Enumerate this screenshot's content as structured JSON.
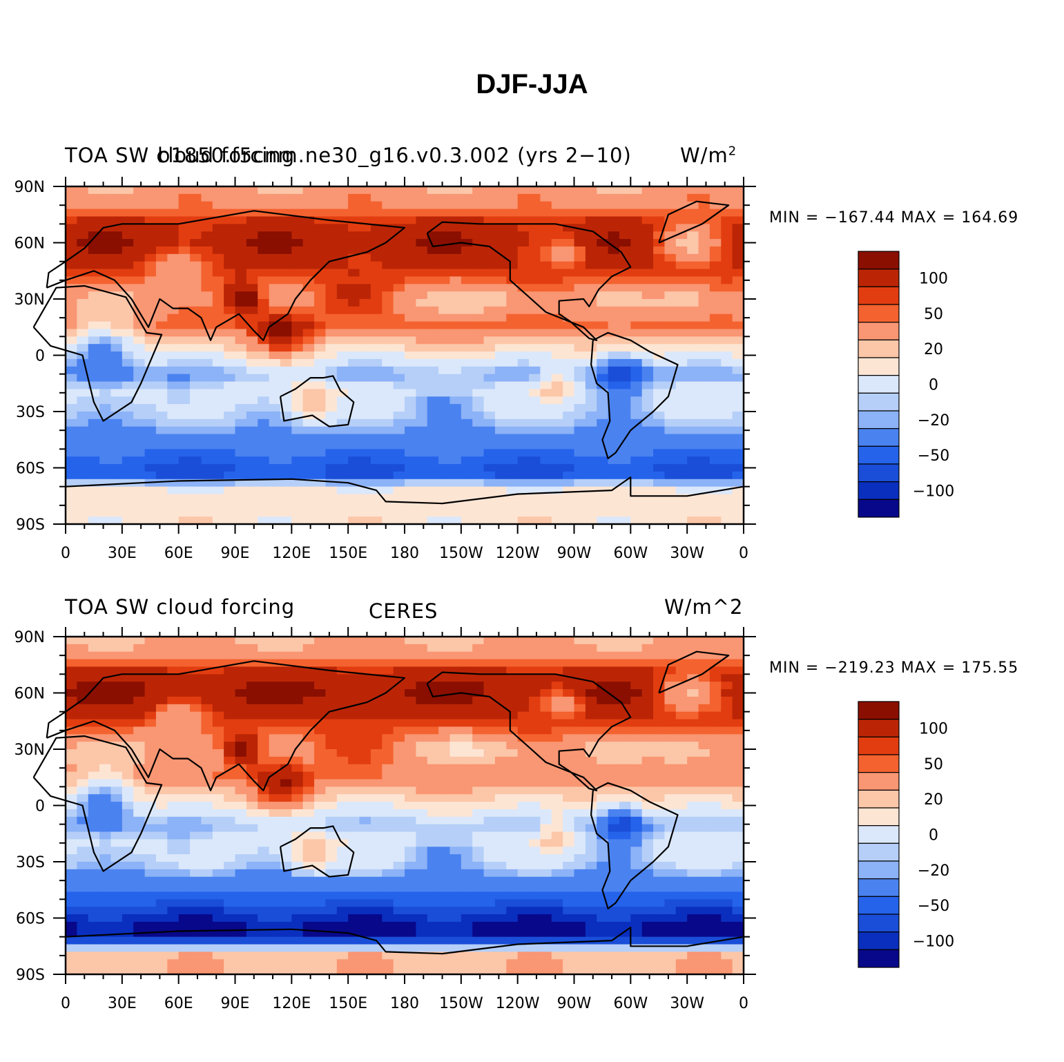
{
  "title": "DJF-JJA",
  "colors": [
    "#08088a",
    "#0a2fbf",
    "#1a4ed8",
    "#2563eb",
    "#4a82f0",
    "#8cb2f7",
    "#b5cff8",
    "#dbe8fb",
    "#fde5d4",
    "#fcc6a8",
    "#f99673",
    "#f4622f",
    "#e23d10",
    "#bb2506",
    "#8a0f00"
  ],
  "colorbar_labels": [
    "100",
    "50",
    "20",
    "0",
    "−20",
    "−50",
    "−100"
  ],
  "lon_labels": [
    "0",
    "30E",
    "60E",
    "90E",
    "120E",
    "150E",
    "180",
    "150W",
    "120W",
    "90W",
    "60W",
    "30W",
    "0"
  ],
  "lat_labels": [
    "90N",
    "60N",
    "30N",
    "0",
    "30S",
    "60S",
    "90S"
  ],
  "panels": [
    {
      "left_label": "TOA SW cloud forcing",
      "center_label": "b1850.f5cnm.ne30_g16.v0.3.002 (yrs 2−10)",
      "units_base": "W/m",
      "units_sup": "2",
      "units_plain": "",
      "stats": "MIN = −167.44  MAX = 164.69"
    },
    {
      "left_label": "TOA SW cloud forcing",
      "center_label": "CERES",
      "units_base": "",
      "units_sup": "",
      "units_plain": "W/m^2",
      "stats": "MIN = −219.23  MAX = 175.55"
    }
  ],
  "chart_data": [
    {
      "type": "heatmap",
      "title": "TOA SW cloud forcing",
      "subtitle": "b1850.f5cnm.ne30_g16.v0.3.002 (yrs 2−10)",
      "units": "W/m^2",
      "projection": "cylindrical equidistant",
      "x_range": [
        0,
        360
      ],
      "y_range": [
        -90,
        90
      ],
      "min": -167.44,
      "max": 164.69,
      "contour_levels": [
        -140,
        -120,
        -100,
        -80,
        -60,
        -50,
        -40,
        -20,
        0,
        20,
        40,
        50,
        60,
        80,
        100,
        120
      ],
      "zonal_pattern_lat": [
        90,
        80,
        70,
        60,
        45,
        30,
        15,
        0,
        -10,
        -20,
        -30,
        -40,
        -50,
        -60,
        -65,
        -70,
        -80,
        -90
      ],
      "zonal_pattern_val": [
        25,
        35,
        65,
        75,
        60,
        25,
        45,
        -15,
        -55,
        -30,
        -40,
        -60,
        -75,
        -100,
        -95,
        -20,
        -10,
        -10
      ]
    },
    {
      "type": "heatmap",
      "title": "TOA SW cloud forcing",
      "subtitle": "CERES",
      "units": "W/m^2",
      "projection": "cylindrical equidistant",
      "x_range": [
        0,
        360
      ],
      "y_range": [
        -90,
        90
      ],
      "min": -219.23,
      "max": 175.55,
      "contour_levels": [
        -140,
        -120,
        -100,
        -80,
        -60,
        -50,
        -40,
        -20,
        0,
        20,
        40,
        50,
        60,
        80,
        100,
        120
      ],
      "zonal_pattern_lat": [
        90,
        80,
        70,
        60,
        45,
        30,
        15,
        0,
        -10,
        -20,
        -30,
        -40,
        -50,
        -60,
        -65,
        -70,
        -80,
        -90
      ],
      "zonal_pattern_val": [
        20,
        30,
        70,
        80,
        60,
        20,
        40,
        -10,
        -50,
        -30,
        -40,
        -70,
        -90,
        -130,
        -150,
        -140,
        15,
        15
      ]
    }
  ]
}
